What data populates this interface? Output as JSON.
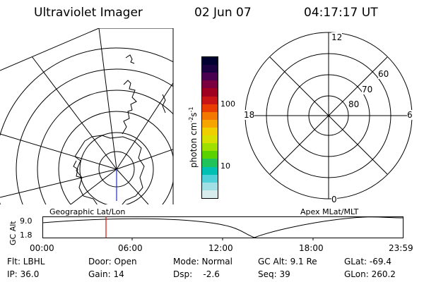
{
  "header": {
    "instrument": "Ultraviolet Imager",
    "date": "02 Jun 07",
    "time": "04:17:17 UT"
  },
  "colorbar": {
    "unit_label": "photon cm",
    "unit_sup1": "-2",
    "unit_mid": "s",
    "unit_sup2": "-1",
    "tick_labels": [
      "100",
      "10"
    ],
    "colors": [
      "#000030",
      "#1a0040",
      "#4a0050",
      "#7a0040",
      "#a00020",
      "#c81414",
      "#e83c00",
      "#f27800",
      "#f5a400",
      "#f0cf00",
      "#d7e000",
      "#a0e000",
      "#5ad200",
      "#20c25a",
      "#00c0b4",
      "#50d0d8",
      "#a0e0e4",
      "#d8ecee"
    ]
  },
  "geo_panel": {
    "label": "Geographic Lat/Lon"
  },
  "apex_panel": {
    "label": "Apex MLat/MLT",
    "mlt_labels": {
      "top": "12",
      "bottom": "0",
      "left": "18",
      "right": "6"
    },
    "lat_labels": [
      "60",
      "70",
      "80"
    ]
  },
  "altitude_plot": {
    "ylabel": "GC Alt",
    "yticks": [
      "9.0",
      "1.8"
    ],
    "xticks": [
      "00:00",
      "06:00",
      "12:00",
      "18:00",
      "23:59"
    ]
  },
  "status": {
    "row1": {
      "flt": "Flt: LBHL",
      "door": "Door: Open",
      "mode": "Mode: Normal",
      "gcalt": "GC Alt: 9.1 Re",
      "glat": "GLat: -69.4"
    },
    "row2": {
      "ip": "IP: 36.0",
      "gain": "Gain: 14",
      "dsp": "Dsp:    -2.6",
      "seq": "Seq: 39",
      "glon": "GLon: 260.2"
    }
  }
}
